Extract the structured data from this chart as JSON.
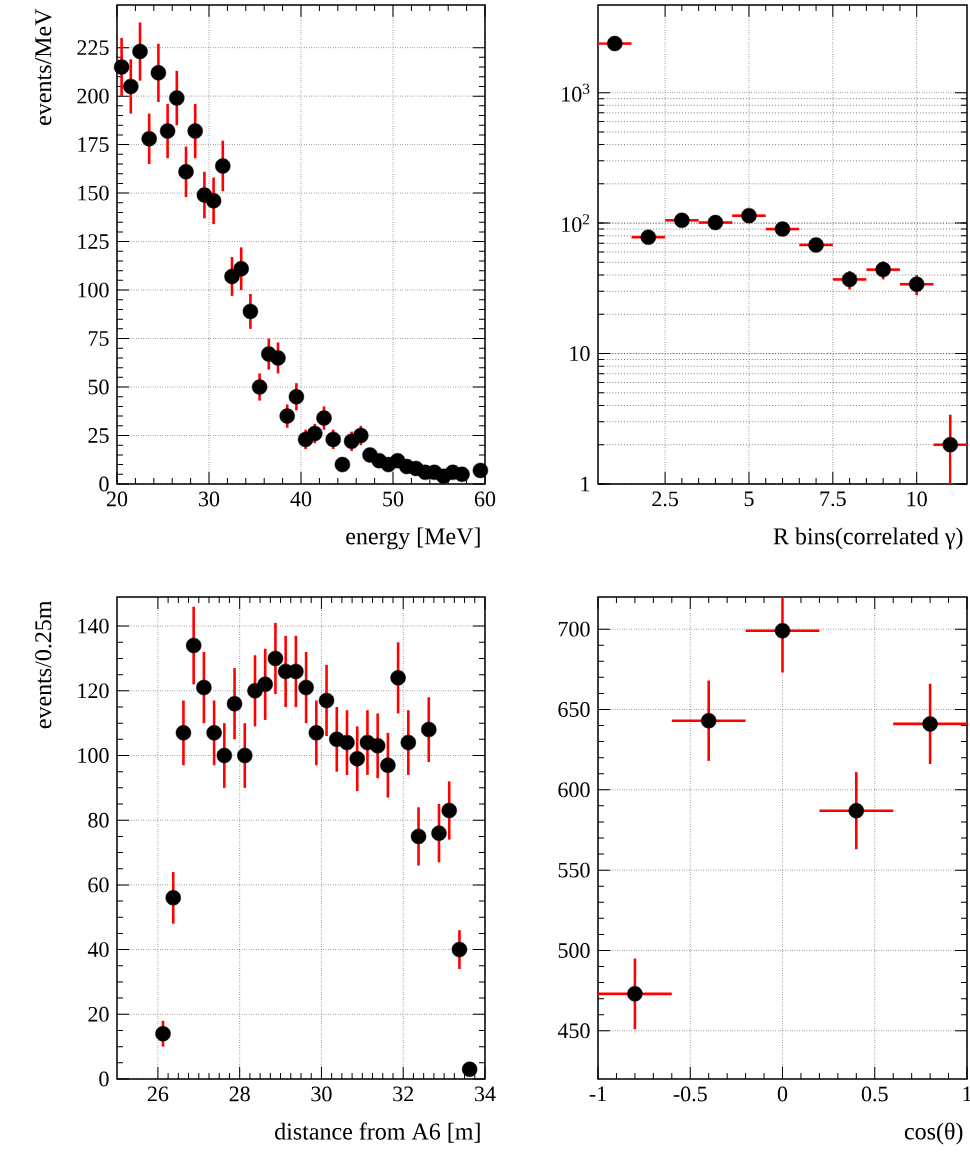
{
  "chart_data": [
    {
      "type": "scatter",
      "xlabel": "energy [MeV]",
      "ylabel": "events/MeV",
      "color": "#000000",
      "marker": "circle",
      "grid": true,
      "x": [
        20.5,
        21.5,
        22.5,
        23.5,
        24.5,
        25.5,
        26.5,
        27.5,
        28.5,
        29.5,
        30.5,
        31.5,
        32.5,
        33.5,
        34.5,
        35.5,
        36.5,
        37.5,
        38.5,
        39.5,
        40.5,
        41.5,
        42.5,
        43.5,
        44.5,
        45.5,
        46.5,
        47.5,
        48.5,
        49.5,
        50.5,
        51.5,
        52.5,
        53.5,
        54.5,
        55.5,
        56.5,
        57.5,
        59.5
      ],
      "values": [
        215,
        205,
        223,
        178,
        212,
        182,
        199,
        161,
        182,
        149,
        146,
        164,
        107,
        111,
        89,
        50,
        67,
        65,
        35,
        45,
        23,
        26,
        34,
        23,
        10,
        22,
        25,
        15,
        12,
        10,
        12,
        9,
        8,
        6,
        6,
        4,
        6,
        5,
        7
      ],
      "errors": [
        15,
        14,
        15,
        13,
        15,
        14,
        14,
        13,
        14,
        12,
        12,
        13,
        10,
        11,
        9,
        7,
        8,
        8,
        6,
        7,
        5,
        5,
        6,
        5,
        null,
        5,
        5,
        null,
        null,
        null,
        null,
        null,
        null,
        null,
        null,
        null,
        null,
        null,
        null
      ],
      "xlim": [
        20,
        60
      ],
      "ylim": [
        0,
        247
      ],
      "xticks": [
        20,
        30,
        40,
        50,
        60
      ],
      "yticks": [
        0,
        25,
        50,
        75,
        100,
        125,
        150,
        175,
        200,
        225
      ]
    },
    {
      "type": "scatter",
      "xlabel": "R bins(correlated γ)",
      "color": "#000000",
      "marker": "circle",
      "grid": true,
      "log": "y",
      "x": [
        1,
        2,
        3,
        4,
        5,
        6,
        7,
        8,
        9,
        10,
        11
      ],
      "values": [
        2380,
        78,
        105,
        101,
        114,
        90,
        68,
        37,
        44,
        34,
        2
      ],
      "errors": [
        null,
        null,
        null,
        null,
        null,
        null,
        null,
        6,
        7,
        6,
        [
          1,
          3.4
        ]
      ],
      "xerrors": [
        0.5,
        0.5,
        0.5,
        0.5,
        0.5,
        0.5,
        0.5,
        0.5,
        0.5,
        0.5,
        0.5
      ],
      "xlim": [
        0.5,
        11.5
      ],
      "ylim": [
        1,
        4700
      ],
      "xticks": [
        2.5,
        5,
        7.5,
        10
      ],
      "yticks": [
        1,
        10,
        {
          "value": 100,
          "label": "10$^{2}$"
        },
        {
          "value": 1000,
          "label": "10$^{3}$"
        }
      ]
    },
    {
      "type": "scatter",
      "xlabel": "distance from A6 [m]",
      "ylabel": "events/0.25m",
      "color": "#000000",
      "marker": "circle",
      "grid": true,
      "x": [
        26.125,
        26.375,
        26.625,
        26.875,
        27.125,
        27.375,
        27.625,
        27.875,
        28.125,
        28.375,
        28.625,
        28.875,
        29.125,
        29.375,
        29.625,
        29.875,
        30.125,
        30.375,
        30.625,
        30.875,
        31.125,
        31.375,
        31.625,
        31.875,
        32.125,
        32.375,
        32.625,
        32.875,
        33.125,
        33.375,
        33.625
      ],
      "values": [
        14,
        56,
        107,
        134,
        121,
        107,
        100,
        116,
        100,
        120,
        122,
        130,
        126,
        126,
        121,
        107,
        117,
        105,
        104,
        99,
        104,
        103,
        97,
        124,
        104,
        75,
        108,
        76,
        83,
        40,
        3
      ],
      "errors": [
        4,
        8,
        10,
        12,
        11,
        10,
        10,
        11,
        10,
        11,
        11,
        11,
        11,
        11,
        11,
        10,
        11,
        10,
        10,
        10,
        10,
        10,
        10,
        11,
        10,
        9,
        10,
        9,
        9,
        6,
        null
      ],
      "xlim": [
        25,
        34
      ],
      "ylim": [
        0,
        149
      ],
      "xticks": [
        26,
        28,
        30,
        32,
        34
      ],
      "yticks": [
        0,
        20,
        40,
        60,
        80,
        100,
        120,
        140
      ]
    },
    {
      "type": "scatter",
      "xlabel": "cos(θ)",
      "color": "#000000",
      "marker": "circle",
      "grid": true,
      "x": [
        -0.8,
        -0.4,
        0,
        0.4,
        0.8
      ],
      "values": [
        473,
        643,
        699,
        587,
        641
      ],
      "errors": [
        22,
        25,
        [
          673,
          720
        ],
        24,
        25
      ],
      "xerrors": [
        0.2,
        0.2,
        0.2,
        0.2,
        0.2
      ],
      "xlim": [
        -1,
        1
      ],
      "ylim": [
        420,
        720
      ],
      "xticks": [
        -1,
        -0.5,
        0,
        0.5,
        1
      ],
      "yticks": [
        450,
        500,
        550,
        600,
        650,
        700
      ]
    }
  ]
}
